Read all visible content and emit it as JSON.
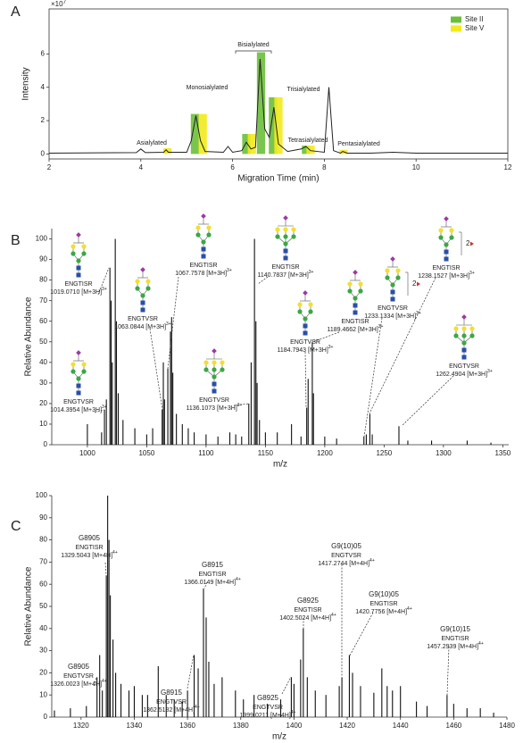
{
  "chart_data": [
    {
      "label": "A",
      "type": "combo",
      "frame": true,
      "xlabel": "Migration Time (min)",
      "ylabel": "Intensity",
      "scale_label": "×10",
      "scale_exponent": "7",
      "xlim": [
        2,
        12
      ],
      "xticks": [
        2,
        4,
        6,
        8,
        10,
        12
      ],
      "ylim": [
        -0.3,
        8.7
      ],
      "yticks": [
        0,
        2,
        4,
        6
      ],
      "legend": "upper right",
      "trace": {
        "color": "#222222",
        "x": [
          2,
          3.9,
          4.0,
          4.1,
          4.5,
          4.55,
          4.6,
          5.0,
          5.1,
          5.2,
          5.3,
          5.4,
          5.8,
          5.9,
          6.0,
          6.2,
          6.3,
          6.4,
          6.5,
          6.6,
          6.7,
          6.8,
          6.9,
          7.0,
          7.2,
          7.5,
          7.6,
          7.7,
          8.0,
          8.1,
          8.2,
          8.35,
          8.4,
          8.5,
          9.0,
          9.5,
          10,
          12
        ],
        "values": [
          0.05,
          0.08,
          0.3,
          0.08,
          0.1,
          0.25,
          0.1,
          0.1,
          0.8,
          2.3,
          0.8,
          0.15,
          0.1,
          0.45,
          0.1,
          0.2,
          0.7,
          0.3,
          0.4,
          5.7,
          1.5,
          1.0,
          2.8,
          0.6,
          0.15,
          0.3,
          0.45,
          0.2,
          0.1,
          4.0,
          0.2,
          0.05,
          0.15,
          0.05,
          0.05,
          0.1,
          0.05,
          0.05
        ]
      },
      "series": [
        {
          "name": "Site II",
          "color": "#6cbf3a",
          "x": [
            5.18,
            6.3,
            6.62,
            6.88,
            7.6
          ],
          "values": [
            2.4,
            1.2,
            6.1,
            3.4,
            0.5
          ]
        },
        {
          "name": "Site V",
          "color": "#f2ea1d",
          "x": [
            4.58,
            5.35,
            6.42,
            7.0,
            7.7,
            8.42
          ],
          "values": [
            0.35,
            2.4,
            1.2,
            3.4,
            0.5,
            0.25
          ]
        }
      ],
      "annotations": [
        "Asialylated",
        "Monosialylated",
        "Bisialylated",
        "Trisialylated",
        "Tetrasialylated",
        "Pentasialylated"
      ]
    },
    {
      "label": "B",
      "type": "spectrum",
      "frame": false,
      "xlabel": "m/z",
      "ylabel": "Relative Abundance",
      "xlim": [
        970,
        1355
      ],
      "xticks": [
        1000,
        1050,
        1100,
        1150,
        1200,
        1250,
        1300,
        1350
      ],
      "ylim": [
        0,
        105
      ],
      "yticks": [
        0,
        10,
        20,
        30,
        40,
        50,
        60,
        70,
        80,
        90,
        100
      ],
      "color": "#111111",
      "x": [
        1000,
        1012,
        1014.4,
        1016,
        1019,
        1020,
        1021,
        1023.5,
        1024.5,
        1026,
        1030,
        1040,
        1050,
        1055,
        1063,
        1064,
        1065,
        1067.8,
        1070,
        1071,
        1072,
        1075,
        1080,
        1085,
        1090,
        1100,
        1110,
        1120,
        1125,
        1130,
        1136,
        1138,
        1140.8,
        1142,
        1143,
        1145,
        1150,
        1160,
        1172,
        1180,
        1184.8,
        1186,
        1189.5,
        1190.5,
        1200,
        1210,
        1233,
        1235,
        1238,
        1240,
        1262.5,
        1270,
        1290,
        1320,
        1340
      ],
      "values": [
        10,
        6,
        17,
        22,
        86,
        70,
        40,
        100,
        60,
        25,
        12,
        8,
        5,
        8,
        17,
        40,
        22,
        37,
        55,
        62,
        35,
        15,
        10,
        8,
        6,
        5,
        4,
        6,
        5,
        4,
        20,
        40,
        100,
        60,
        30,
        12,
        6,
        6,
        10,
        4,
        18,
        32,
        50,
        25,
        4,
        3,
        4,
        5,
        15,
        5,
        9,
        2,
        2,
        2,
        1
      ],
      "annotations": [
        {
          "peptide": "ENGTISR",
          "mz": "1019.0710 [M+3H]",
          "charge": "3+"
        },
        {
          "peptide": "ENGTVSR",
          "mz": "1014.3954 [M+3H]",
          "charge": "3+"
        },
        {
          "peptide": "ENGTVSR",
          "mz": "1063.0844 [M+3H]",
          "charge": "3+"
        },
        {
          "peptide": "ENGTISR",
          "mz": "1067.7578 [M+3H]",
          "charge": "3+"
        },
        {
          "peptide": "ENGTVSR",
          "mz": "1136.1073 [M+3H]",
          "charge": "3+"
        },
        {
          "peptide": "ENGTISR",
          "mz": "1140.7837 [M+3H]",
          "charge": "3+"
        },
        {
          "peptide": "ENGTVSR",
          "mz": "1184.7943 [M+3H]",
          "charge": "3+"
        },
        {
          "peptide": "ENGTISR",
          "mz": "1189.4662 [M+3H]",
          "charge": "3+"
        },
        {
          "peptide": "ENGTVSR",
          "mz": "1233.1334 [M+3H]",
          "charge": "3+",
          "multiplier": "2"
        },
        {
          "peptide": "ENGTISR",
          "mz": "1238.1527 [M+3H]",
          "charge": "3+",
          "multiplier": "2"
        },
        {
          "peptide": "ENGTVSR",
          "mz": "1262.4904 [M+3H]",
          "charge": "3+"
        }
      ]
    },
    {
      "label": "C",
      "type": "spectrum",
      "frame": false,
      "xlabel": "m/z",
      "ylabel": "Relative Abundance",
      "xlim": [
        1309,
        1480
      ],
      "xticks": [
        1320,
        1340,
        1360,
        1380,
        1400,
        1420,
        1440,
        1460,
        1480
      ],
      "ylim": [
        0,
        100
      ],
      "yticks": [
        0,
        10,
        20,
        30,
        40,
        50,
        60,
        70,
        80,
        90,
        100
      ],
      "color": "#111111",
      "x": [
        1310,
        1316,
        1322,
        1326,
        1327,
        1328,
        1329.5,
        1330,
        1330.5,
        1331,
        1332,
        1333,
        1335,
        1338,
        1340,
        1343,
        1345,
        1349,
        1352,
        1355,
        1358,
        1360,
        1362.5,
        1364,
        1366,
        1367,
        1368,
        1370,
        1373,
        1378,
        1381,
        1385,
        1390,
        1395,
        1399,
        1400,
        1402.5,
        1403.5,
        1405,
        1408,
        1412,
        1417,
        1418,
        1420.8,
        1422,
        1425,
        1430,
        1433,
        1435,
        1437,
        1440,
        1446,
        1450,
        1457.5,
        1460,
        1465,
        1470,
        1475
      ],
      "values": [
        3,
        4,
        5,
        18,
        28,
        12,
        64,
        100,
        80,
        55,
        35,
        20,
        15,
        12,
        14,
        10,
        10,
        23,
        10,
        8,
        7,
        12,
        28,
        22,
        58,
        45,
        25,
        15,
        18,
        12,
        8,
        10,
        6,
        8,
        18,
        15,
        26,
        40,
        18,
        12,
        10,
        14,
        18,
        28,
        20,
        14,
        11,
        22,
        14,
        12,
        14,
        7,
        5,
        10,
        6,
        4,
        4,
        2
      ],
      "annotations": [
        {
          "name": "G8905",
          "peptide": "ENGTISR",
          "mz": "1329.5043 [M+4H]",
          "charge": "4+"
        },
        {
          "name": "G8905",
          "peptide": "ENGTVSR",
          "mz": "1326.0023 [M+4H]",
          "charge": "4+"
        },
        {
          "name": "G8915",
          "peptide": "ENGTISR",
          "mz": "1366.0149 [M+4H]",
          "charge": "4+"
        },
        {
          "name": "G8915",
          "peptide": "ENGTVSR",
          "mz": "1362.5182 [M+4H]",
          "charge": "4+"
        },
        {
          "name": "G8925",
          "peptide": "ENGTISR",
          "mz": "1402.5024 [M+4H]",
          "charge": "4+"
        },
        {
          "name": "G8925",
          "peptide": "ENGTVSR",
          "mz": "1399.0211 [M+4H]",
          "charge": "4+"
        },
        {
          "name": "G9(10)05",
          "peptide": "ENGTVSR",
          "mz": "1417.2744 [M+4H]",
          "charge": "4+"
        },
        {
          "name": "G9(10)05",
          "peptide": "ENGTISR",
          "mz": "1420.7756 [M+4H]",
          "charge": "4+"
        },
        {
          "name": "G9(10)15",
          "peptide": "ENGTISR",
          "mz": "1457.2939 [M+4H]",
          "charge": "4+"
        }
      ]
    }
  ]
}
